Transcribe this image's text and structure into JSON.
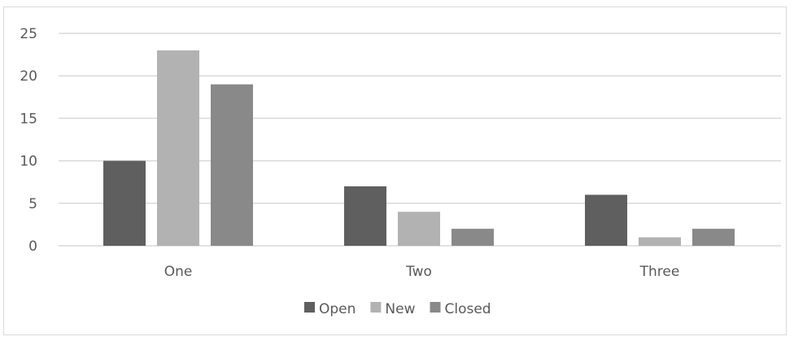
{
  "chart_data": {
    "type": "bar",
    "categories": [
      "One",
      "Two",
      "Three"
    ],
    "series": [
      {
        "name": "Open",
        "values": [
          10,
          7,
          6
        ],
        "color": "#5f5f5f"
      },
      {
        "name": "New",
        "values": [
          23,
          4,
          1
        ],
        "color": "#b2b2b2"
      },
      {
        "name": "Closed",
        "values": [
          19,
          2,
          2
        ],
        "color": "#898989"
      }
    ],
    "ylim": [
      0,
      25
    ],
    "yticks": [
      0,
      5,
      10,
      15,
      20,
      25
    ],
    "grid": true,
    "legend": "bottom",
    "gridline_color": "#d9d9d9"
  }
}
